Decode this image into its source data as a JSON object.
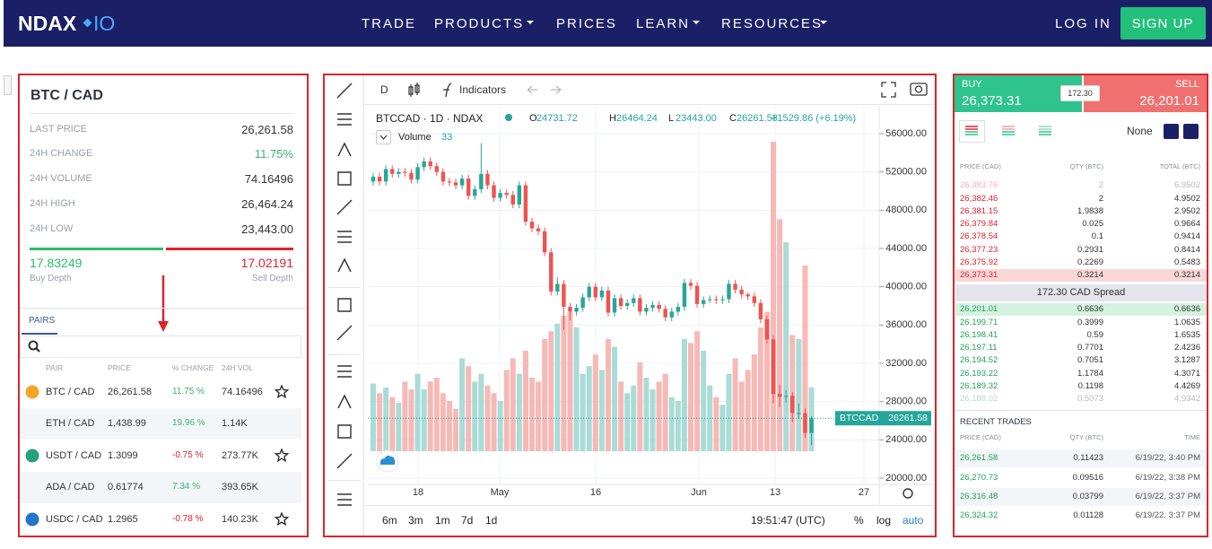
{
  "nav": {
    "logo": "NDAX",
    "logo_suffix": "IO",
    "menu": [
      "TRADE",
      "PRODUCTS",
      "PRICES",
      "LEARN",
      "RESOURCES"
    ],
    "login": "LOG IN",
    "signup": "SIGN UP"
  },
  "market": {
    "pair": "BTC / CAD",
    "stats": [
      [
        "LAST PRICE",
        "26,261.58"
      ],
      [
        "24H CHANGE",
        "11.75%"
      ],
      [
        "24H VOLUME",
        "74.16496"
      ],
      [
        "24H HIGH",
        "26,464.24"
      ],
      [
        "24H LOW",
        "23,443.00"
      ]
    ],
    "buy_depth": "17.83249",
    "buy_depth_label": "Buy Depth",
    "sell_depth": "17.02191",
    "sell_depth_label": "Sell Depth",
    "tab": "PAIRS",
    "columns": [
      "PAIR",
      "PRICE",
      "% CHANGE",
      "24H VOL"
    ],
    "pairs": [
      [
        "BTC / CAD",
        "26,261.58",
        "11.75 %",
        "74.16496"
      ],
      [
        "ETH / CAD",
        "1,438.99",
        "19.96 %",
        "1.14K"
      ],
      [
        "USDT / CAD",
        "1.3099",
        "-0.75 %",
        "273.77K"
      ],
      [
        "ADA / CAD",
        "0.61774",
        "7.34 %",
        "393.65K"
      ],
      [
        "USDC / CAD",
        "1.2965",
        "-0.78 %",
        "140.23K"
      ]
    ]
  },
  "chart": {
    "toolbar": {
      "interval": "D",
      "indicators": "Indicators"
    },
    "symbol": "BTCCAD · 1D · NDAX",
    "ohlc": [
      [
        "O",
        "24731.72"
      ],
      [
        "H",
        "26464.24"
      ],
      [
        "L",
        "23443.00"
      ],
      [
        "C",
        "26261.58"
      ]
    ],
    "change": "+1529.86 (+6.19%)",
    "volume_label": "Volume",
    "price_ticks": [
      {
        "value": 56000,
        "label": "56000.00"
      },
      {
        "value": 52000,
        "label": "52000.00"
      },
      {
        "value": 48000,
        "label": "48000.00"
      },
      {
        "value": 44000,
        "label": "44000.00"
      },
      {
        "value": 40000,
        "label": "40000.00"
      },
      {
        "value": 36000,
        "label": "36000.00"
      },
      {
        "value": 32000,
        "label": "32000.00"
      },
      {
        "value": 28000,
        "label": "28000.00"
      },
      {
        "value": 24000,
        "label": "24000.00"
      },
      {
        "value": 20000,
        "label": "20000.00"
      }
    ],
    "x_labels": [
      "18",
      "May",
      "16",
      "Jun",
      "13",
      "27"
    ],
    "candles": [
      [
        51000,
        51900,
        50600,
        51500
      ],
      [
        51500,
        51900,
        50600,
        51000
      ],
      [
        51000,
        52700,
        50600,
        52300
      ],
      [
        52300,
        52700,
        51400,
        51800
      ],
      [
        51800,
        52400,
        51400,
        52000
      ],
      [
        52000,
        52400,
        51500,
        51900
      ],
      [
        51900,
        52300,
        50800,
        51200
      ],
      [
        51200,
        52900,
        50800,
        52500
      ],
      [
        52500,
        53500,
        52100,
        53100
      ],
      [
        53100,
        53500,
        52200,
        52600
      ],
      [
        52600,
        53000,
        51600,
        52000
      ],
      [
        52000,
        52400,
        50600,
        51000
      ],
      [
        51000,
        51400,
        50500,
        50900
      ],
      [
        50900,
        51300,
        50200,
        50600
      ],
      [
        50600,
        51700,
        50200,
        51300
      ],
      [
        51300,
        51700,
        49100,
        49500
      ],
      [
        49500,
        50600,
        49100,
        50200
      ],
      [
        50200,
        55000,
        49800,
        51800
      ],
      [
        51800,
        52200,
        50200,
        50600
      ],
      [
        50600,
        51000,
        48900,
        49300
      ],
      [
        49300,
        50200,
        48900,
        49800
      ],
      [
        49800,
        50200,
        49200,
        49600
      ],
      [
        49600,
        50000,
        48200,
        48600
      ],
      [
        48600,
        51000,
        48200,
        50600
      ],
      [
        50600,
        51000,
        46400,
        46800
      ],
      [
        46800,
        47200,
        45700,
        46100
      ],
      [
        46100,
        46500,
        45400,
        45800
      ],
      [
        45800,
        46200,
        43200,
        43600
      ],
      [
        43600,
        44000,
        39100,
        39500
      ],
      [
        39500,
        41000,
        39100,
        40300
      ],
      [
        40300,
        40700,
        35500,
        37900
      ],
      [
        37900,
        38300,
        36500,
        37400
      ],
      [
        37400,
        38200,
        37000,
        37800
      ],
      [
        37800,
        39300,
        37400,
        38900
      ],
      [
        38900,
        40400,
        38500,
        40000
      ],
      [
        40000,
        40400,
        38500,
        38900
      ],
      [
        38900,
        40000,
        38500,
        39600
      ],
      [
        39600,
        40000,
        36900,
        37300
      ],
      [
        37300,
        39200,
        36900,
        38800
      ],
      [
        38800,
        39200,
        37600,
        38000
      ],
      [
        38000,
        38700,
        37600,
        38300
      ],
      [
        38300,
        39200,
        37900,
        38800
      ],
      [
        38800,
        39200,
        37000,
        37400
      ],
      [
        37400,
        38200,
        37000,
        37800
      ],
      [
        37800,
        38500,
        37400,
        38100
      ],
      [
        38100,
        38500,
        37300,
        37700
      ],
      [
        37700,
        38100,
        36400,
        36800
      ],
      [
        36800,
        37800,
        36400,
        37400
      ],
      [
        37400,
        38300,
        37000,
        37900
      ],
      [
        37900,
        40800,
        37500,
        40400
      ],
      [
        40400,
        40800,
        39700,
        40100
      ],
      [
        40100,
        40500,
        37800,
        38200
      ],
      [
        38200,
        39000,
        37800,
        38600
      ],
      [
        38600,
        39100,
        38300,
        38700
      ],
      [
        38700,
        39100,
        38200,
        38600
      ],
      [
        38600,
        39100,
        38200,
        38700
      ],
      [
        38700,
        40700,
        38300,
        40300
      ],
      [
        40300,
        40700,
        39300,
        39700
      ],
      [
        39700,
        40100,
        38800,
        39200
      ],
      [
        39200,
        39400,
        38600,
        39000
      ],
      [
        39000,
        39400,
        37900,
        38300
      ],
      [
        38300,
        38700,
        36200,
        36600
      ],
      [
        36600,
        37000,
        34100,
        34500
      ],
      [
        34500,
        34900,
        27800,
        28800
      ],
      [
        28800,
        29800,
        27400,
        28500
      ],
      [
        28500,
        29200,
        27900,
        28600
      ],
      [
        28600,
        29000,
        25800,
        26800
      ],
      [
        26800,
        27800,
        26200,
        26800
      ],
      [
        26800,
        27300,
        24200,
        24731.72
      ],
      [
        24731.72,
        26464.24,
        23443,
        26261.58
      ]
    ],
    "volumes": [
      35,
      30,
      33,
      28,
      25,
      36,
      32,
      40,
      32,
      36,
      38,
      30,
      26,
      22,
      48,
      44,
      36,
      40,
      34,
      30,
      26,
      42,
      48,
      40,
      52,
      38,
      36,
      58,
      62,
      66,
      70,
      72,
      64,
      40,
      44,
      50,
      42,
      58,
      54,
      36,
      30,
      34,
      46,
      38,
      32,
      36,
      40,
      28,
      26,
      58,
      56,
      62,
      52,
      34,
      28,
      24,
      40,
      48,
      36,
      42,
      50,
      64,
      72,
      160,
      120,
      108,
      60,
      58,
      96,
      33
    ],
    "price_tag": "BTCCAD",
    "ranges": [
      "6m",
      "3m",
      "1m",
      "7d",
      "1d"
    ],
    "clock": "19:51:47 (UTC)",
    "scale_options": [
      "%",
      "log",
      "auto"
    ]
  },
  "orderbook": {
    "buy_label": "BUY",
    "buy_price": "26,373.31",
    "spread_badge": "172.30",
    "sell_label": "SELL",
    "sell_price": "26,201.01",
    "grouping": "None",
    "columns": [
      "PRICE (CAD)",
      "QTY (BTC)",
      "TOTAL (BTC)"
    ],
    "asks": [
      [
        "26,383.76",
        "2",
        "6.9502"
      ],
      [
        "26,382.46",
        "2",
        "4.9502"
      ],
      [
        "26,381.15",
        "1.9838",
        "2.9502"
      ],
      [
        "26,379.84",
        "0.025",
        "0.9664"
      ],
      [
        "26,378.54",
        "0.1",
        "0.9414"
      ],
      [
        "26,377.23",
        "0.2931",
        "0.8414"
      ],
      [
        "26,375.92",
        "0.2269",
        "0.5483"
      ],
      [
        "26,373.31",
        "0.3214",
        "0.3214"
      ]
    ],
    "spread": "172.30 CAD Spread",
    "bids": [
      [
        "26,201.01",
        "0.6636",
        "0.6636"
      ],
      [
        "26,199.71",
        "0.3999",
        "1.0635"
      ],
      [
        "26,198.41",
        "0.59",
        "1.6535"
      ],
      [
        "26,197.11",
        "0.7701",
        "2.4236"
      ],
      [
        "26,194.52",
        "0.7051",
        "3.1287"
      ],
      [
        "26,193.22",
        "1.1784",
        "4.3071"
      ],
      [
        "26,189.32",
        "0.1198",
        "4.4269"
      ],
      [
        "26,188.02",
        "0.5073",
        "4.9342"
      ]
    ]
  },
  "trades": {
    "title": "RECENT TRADES",
    "columns": [
      "PRICE (CAD)",
      "QTY (BTC)",
      "TIME"
    ],
    "rows": [
      [
        "26,261.58",
        "0.11423",
        "6/19/22, 3:40 PM"
      ],
      [
        "26,270.73",
        "0.09516",
        "6/19/22, 3:38 PM"
      ],
      [
        "26,316.48",
        "0.03799",
        "6/19/22, 3:37 PM"
      ],
      [
        "26,324.32",
        "0.01128",
        "6/19/22, 3:37 PM"
      ]
    ]
  }
}
